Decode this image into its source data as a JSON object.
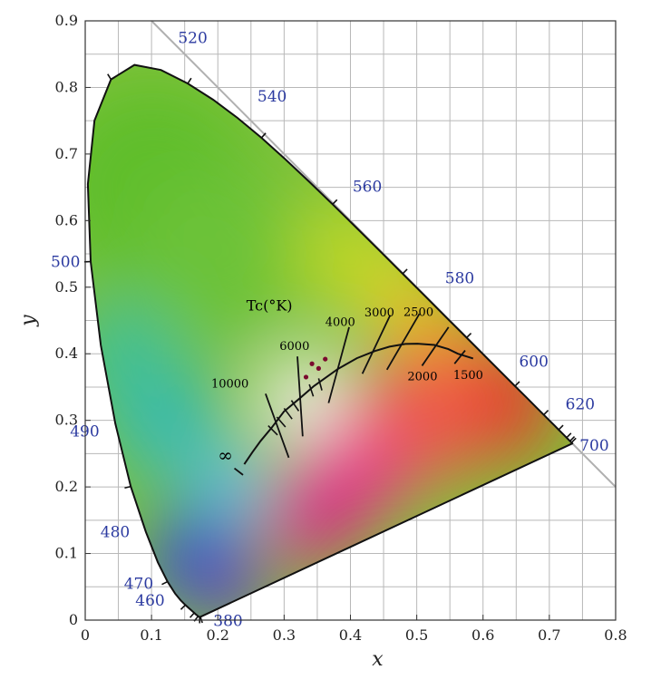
{
  "chart_data": {
    "type": "chromaticity-diagram",
    "title": "",
    "xlabel": "x",
    "ylabel": "y",
    "xlim": [
      0,
      0.8
    ],
    "ylim": [
      0,
      0.9
    ],
    "x_ticks": [
      "0",
      "0.1",
      "0.2",
      "0.3",
      "0.4",
      "0.5",
      "0.6",
      "0.7",
      "0.8"
    ],
    "y_ticks": [
      "0",
      "0.1",
      "0.2",
      "0.3",
      "0.4",
      "0.5",
      "0.6",
      "0.7",
      "0.8",
      "0.9"
    ],
    "grid": true,
    "spectral_locus": [
      [
        0.1741,
        0.005
      ],
      [
        0.1738,
        0.0049
      ],
      [
        0.1736,
        0.0049
      ],
      [
        0.1733,
        0.0048
      ],
      [
        0.173,
        0.0048
      ],
      [
        0.1726,
        0.0048
      ],
      [
        0.1721,
        0.0048
      ],
      [
        0.1714,
        0.0051
      ],
      [
        0.1703,
        0.0058
      ],
      [
        0.1689,
        0.0069
      ],
      [
        0.1669,
        0.0086
      ],
      [
        0.1644,
        0.0109
      ],
      [
        0.1611,
        0.0138
      ],
      [
        0.1566,
        0.0177
      ],
      [
        0.151,
        0.0227
      ],
      [
        0.144,
        0.0297
      ],
      [
        0.1355,
        0.0399
      ],
      [
        0.1241,
        0.0578
      ],
      [
        0.1096,
        0.0868
      ],
      [
        0.0913,
        0.1327
      ],
      [
        0.0687,
        0.2007
      ],
      [
        0.0454,
        0.295
      ],
      [
        0.0235,
        0.4127
      ],
      [
        0.0082,
        0.5384
      ],
      [
        0.0039,
        0.6548
      ],
      [
        0.0139,
        0.7502
      ],
      [
        0.0389,
        0.812
      ],
      [
        0.0743,
        0.8338
      ],
      [
        0.1142,
        0.8262
      ],
      [
        0.1547,
        0.8059
      ],
      [
        0.1929,
        0.7816
      ],
      [
        0.2296,
        0.7543
      ],
      [
        0.2658,
        0.7243
      ],
      [
        0.3016,
        0.6923
      ],
      [
        0.3373,
        0.6589
      ],
      [
        0.3731,
        0.6245
      ],
      [
        0.4087,
        0.5896
      ],
      [
        0.4441,
        0.5547
      ],
      [
        0.4788,
        0.5202
      ],
      [
        0.5125,
        0.4866
      ],
      [
        0.5448,
        0.4544
      ],
      [
        0.5752,
        0.4242
      ],
      [
        0.6029,
        0.3965
      ],
      [
        0.627,
        0.3725
      ],
      [
        0.6482,
        0.3514
      ],
      [
        0.6658,
        0.334
      ],
      [
        0.6801,
        0.3197
      ],
      [
        0.6915,
        0.3083
      ],
      [
        0.7006,
        0.2993
      ],
      [
        0.7079,
        0.292
      ],
      [
        0.714,
        0.2859
      ],
      [
        0.719,
        0.2809
      ],
      [
        0.723,
        0.277
      ],
      [
        0.726,
        0.274
      ],
      [
        0.7283,
        0.2717
      ],
      [
        0.73,
        0.27
      ],
      [
        0.7311,
        0.2689
      ],
      [
        0.732,
        0.268
      ],
      [
        0.7327,
        0.2673
      ],
      [
        0.7334,
        0.2666
      ],
      [
        0.734,
        0.266
      ],
      [
        0.7344,
        0.2656
      ],
      [
        0.7346,
        0.2654
      ],
      [
        0.7347,
        0.2653
      ]
    ],
    "wavelength_labels": [
      {
        "text": "380",
        "x": 0.1741,
        "y": 0.005
      },
      {
        "text": "460",
        "x": 0.144,
        "y": 0.0297
      },
      {
        "text": "470",
        "x": 0.1241,
        "y": 0.0578
      },
      {
        "text": "480",
        "x": 0.0913,
        "y": 0.1327
      },
      {
        "text": "490",
        "x": 0.0454,
        "y": 0.295
      },
      {
        "text": "500",
        "x": 0.0082,
        "y": 0.5384
      },
      {
        "text": "520",
        "x": 0.0743,
        "y": 0.8338
      },
      {
        "text": "540",
        "x": 0.2296,
        "y": 0.7543
      },
      {
        "text": "560",
        "x": 0.3731,
        "y": 0.6245
      },
      {
        "text": "580",
        "x": 0.5125,
        "y": 0.4866
      },
      {
        "text": "600",
        "x": 0.627,
        "y": 0.3725
      },
      {
        "text": "620",
        "x": 0.6915,
        "y": 0.3083
      },
      {
        "text": "700",
        "x": 0.7347,
        "y": 0.2653
      }
    ],
    "planckian_locus": [
      [
        0.2399,
        0.234
      ],
      [
        0.252,
        0.252
      ],
      [
        0.2646,
        0.2692
      ],
      [
        0.2806,
        0.2883
      ],
      [
        0.2997,
        0.3133
      ],
      [
        0.3221,
        0.3318
      ],
      [
        0.345,
        0.3516
      ],
      [
        0.3805,
        0.3768
      ],
      [
        0.4097,
        0.3934
      ],
      [
        0.4369,
        0.4041
      ],
      [
        0.4589,
        0.4106
      ],
      [
        0.4826,
        0.4147
      ],
      [
        0.5012,
        0.4152
      ],
      [
        0.5267,
        0.4133
      ],
      [
        0.5477,
        0.407
      ],
      [
        0.562,
        0.4
      ],
      [
        0.585,
        0.393
      ]
    ],
    "isotherms": [
      {
        "label": "∞",
        "x1": 0.225,
        "y1": 0.228,
        "x2": 0.238,
        "y2": 0.218,
        "lx": 0.2,
        "ly": 0.238
      },
      {
        "label": "10000",
        "x1": 0.272,
        "y1": 0.34,
        "x2": 0.307,
        "y2": 0.244,
        "lx": 0.19,
        "ly": 0.349
      },
      {
        "label": "6000",
        "x1": 0.32,
        "y1": 0.396,
        "x2": 0.328,
        "y2": 0.276,
        "lx": 0.293,
        "ly": 0.406
      },
      {
        "label": "4000",
        "x1": 0.398,
        "y1": 0.44,
        "x2": 0.367,
        "y2": 0.326,
        "lx": 0.362,
        "ly": 0.442
      },
      {
        "label": "3000",
        "x1": 0.46,
        "y1": 0.458,
        "x2": 0.418,
        "y2": 0.37,
        "lx": 0.421,
        "ly": 0.456
      },
      {
        "label": "2500",
        "x1": 0.504,
        "y1": 0.46,
        "x2": 0.455,
        "y2": 0.376,
        "lx": 0.48,
        "ly": 0.457
      },
      {
        "label": "2000",
        "x1": 0.548,
        "y1": 0.44,
        "x2": 0.508,
        "y2": 0.382,
        "lx": 0.486,
        "ly": 0.36
      },
      {
        "label": "1500",
        "x1": 0.573,
        "y1": 0.405,
        "x2": 0.557,
        "y2": 0.385,
        "lx": 0.555,
        "ly": 0.362
      }
    ],
    "planck_ticks": [
      {
        "x1": 0.276,
        "y1": 0.292,
        "x2": 0.29,
        "y2": 0.278
      },
      {
        "x1": 0.289,
        "y1": 0.305,
        "x2": 0.302,
        "y2": 0.29
      },
      {
        "x1": 0.3,
        "y1": 0.318,
        "x2": 0.312,
        "y2": 0.302
      },
      {
        "x1": 0.311,
        "y1": 0.33,
        "x2": 0.322,
        "y2": 0.314
      },
      {
        "x1": 0.338,
        "y1": 0.354,
        "x2": 0.344,
        "y2": 0.336
      },
      {
        "x1": 0.352,
        "y1": 0.363,
        "x2": 0.357,
        "y2": 0.345
      }
    ],
    "tc_label": {
      "text": "Tc(°K)",
      "x": 0.243,
      "y": 0.465
    },
    "dots": [
      [
        0.333,
        0.365
      ],
      [
        0.342,
        0.385
      ],
      [
        0.352,
        0.378
      ],
      [
        0.362,
        0.392
      ]
    ],
    "colors": {
      "locus": "#111111",
      "grid": "#b8b8b8",
      "diagonal": "#b0b0b0",
      "wavelength_label": "#2b3aa0",
      "dot": "#7a0a2e"
    }
  }
}
